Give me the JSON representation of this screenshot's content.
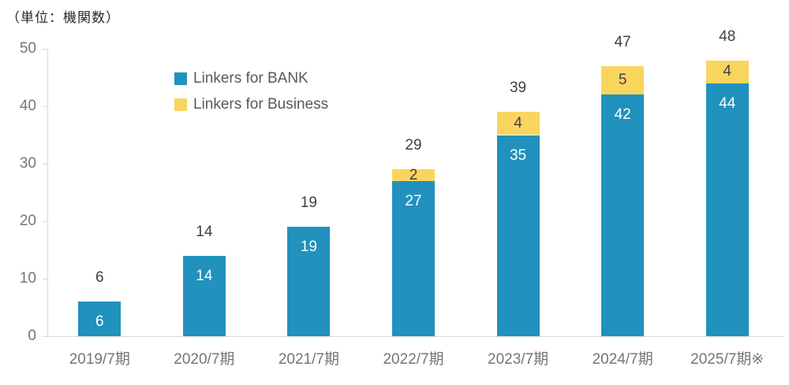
{
  "unit_label": "（単位：機関数）",
  "chart_data": {
    "type": "bar",
    "stacked": true,
    "title": "（単位：機関数）",
    "xlabel": "",
    "ylabel": "機関数",
    "categories": [
      "2019/7期",
      "2020/7期",
      "2021/7期",
      "2022/7期",
      "2023/7期",
      "2024/7期",
      "2025/7期※"
    ],
    "series": [
      {
        "name": "Linkers for BANK",
        "color": "#2191bd",
        "label_color": "#ffffff",
        "values": [
          6,
          14,
          19,
          27,
          35,
          42,
          44
        ]
      },
      {
        "name": "Linkers for Business",
        "color": "#f9d55f",
        "label_color": "#404040",
        "values": [
          0,
          0,
          0,
          2,
          4,
          5,
          4
        ]
      }
    ],
    "totals": [
      6,
      14,
      19,
      29,
      39,
      47,
      48
    ],
    "ylim": [
      0,
      50
    ],
    "yticks": [
      0,
      10,
      20,
      30,
      40,
      50
    ],
    "grid": false,
    "legend_position": "inside-top-left"
  },
  "colors": {
    "axis_line": "#d9d9d9",
    "axis_text": "#757575",
    "total_text": "#404040",
    "legend_text": "#595959",
    "background": "#ffffff"
  }
}
